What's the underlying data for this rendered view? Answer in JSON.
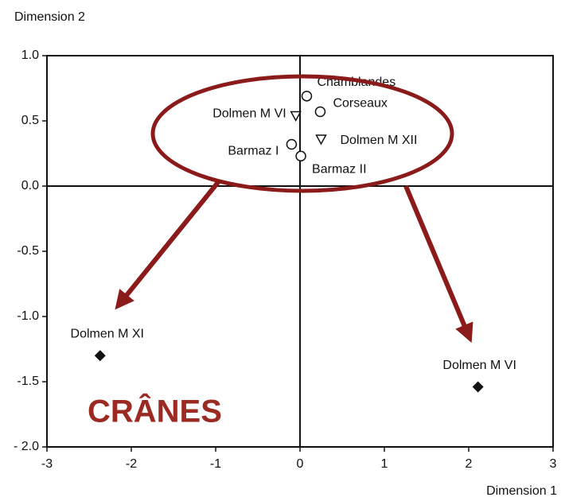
{
  "chart_data": {
    "type": "scatter",
    "y_label": "Dimension 2",
    "x_label": "Dimension 1",
    "annotation": "CRÂNES",
    "xlim": [
      -3,
      3
    ],
    "ylim": [
      -2,
      1
    ],
    "xticks": [
      -3,
      -2,
      -1,
      0,
      1,
      2,
      3
    ],
    "yticks": [
      {
        "value": 1,
        "label": "1.0"
      },
      {
        "value": 0.5,
        "label": "0.5"
      },
      {
        "value": 0,
        "label": "0.0"
      },
      {
        "value": -0.5,
        "label": "-0.5"
      },
      {
        "value": -1,
        "label": "-1.0"
      },
      {
        "value": -1.5,
        "label": "-1.5"
      },
      {
        "value": -2,
        "label": "- 2.0"
      }
    ],
    "points": [
      {
        "label": "Chamblandes",
        "x": 0.08,
        "y": 0.69,
        "marker": "circle"
      },
      {
        "label": "Corseaux",
        "x": 0.24,
        "y": 0.57,
        "marker": "circle"
      },
      {
        "label": "Dolmen M VI",
        "x": -0.05,
        "y": 0.54,
        "marker": "triangle"
      },
      {
        "label": "Dolmen M XII",
        "x": 0.25,
        "y": 0.36,
        "marker": "triangle"
      },
      {
        "label": "Barmaz I",
        "x": -0.1,
        "y": 0.32,
        "marker": "circle"
      },
      {
        "label": "Barmaz II",
        "x": 0.01,
        "y": 0.23,
        "marker": "circle"
      },
      {
        "label": "Dolmen M XI",
        "x": -2.37,
        "y": -1.3,
        "marker": "diamond"
      },
      {
        "label": "Dolmen M VI",
        "x": 2.11,
        "y": -1.54,
        "marker": "diamond"
      }
    ]
  }
}
